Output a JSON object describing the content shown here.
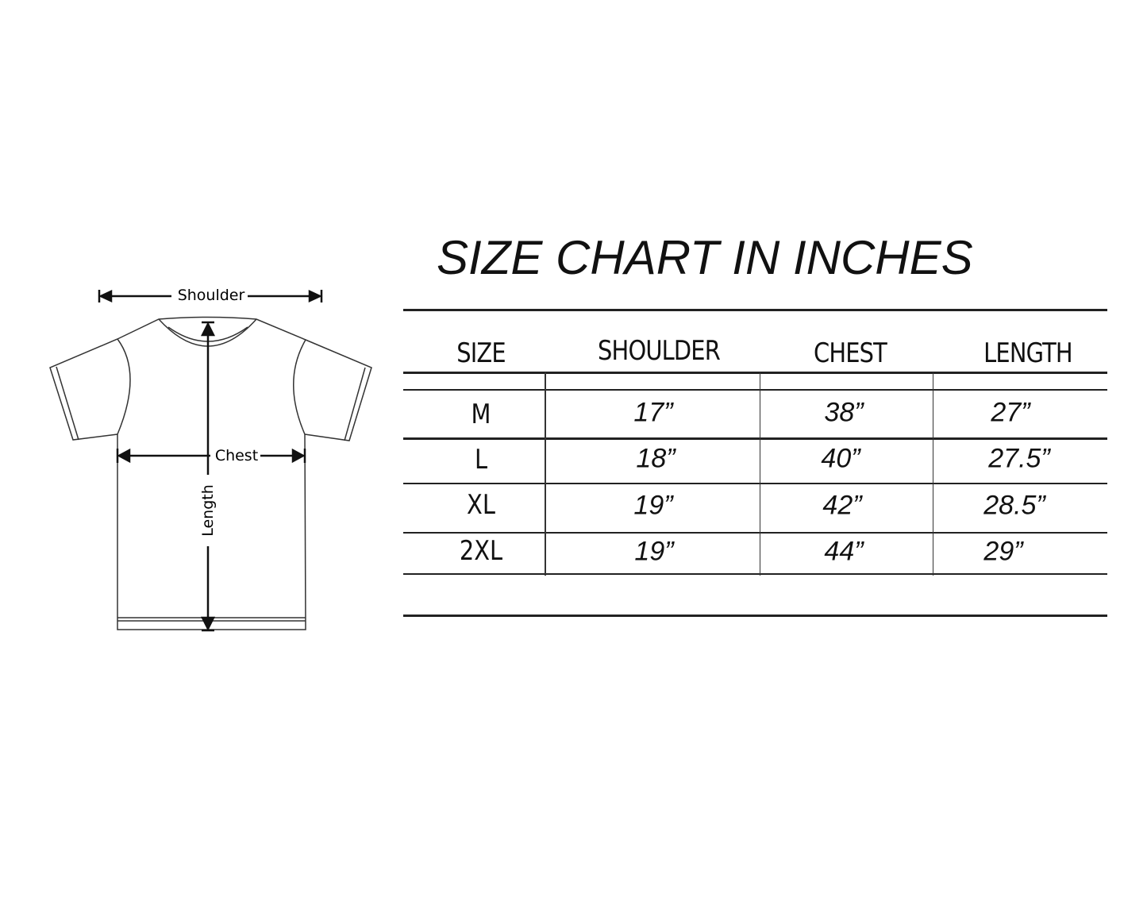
{
  "title": "SIZE CHART IN INCHES",
  "diagram": {
    "labels": {
      "shoulder": "Shoulder",
      "chest": "Chest",
      "length": "Length"
    }
  },
  "table": {
    "headers": [
      "SIZE",
      "SHOULDER",
      "CHEST",
      "LENGTH"
    ],
    "rows": [
      {
        "size": "M",
        "shoulder": "17”",
        "chest": "38”",
        "length": "27”"
      },
      {
        "size": "L",
        "shoulder": "18”",
        "chest": "40”",
        "length": "27.5”"
      },
      {
        "size": "XL",
        "shoulder": "19”",
        "chest": "42”",
        "length": "28.5”"
      },
      {
        "size": "2XL",
        "shoulder": "19”",
        "chest": "44”",
        "length": "29”"
      }
    ]
  }
}
